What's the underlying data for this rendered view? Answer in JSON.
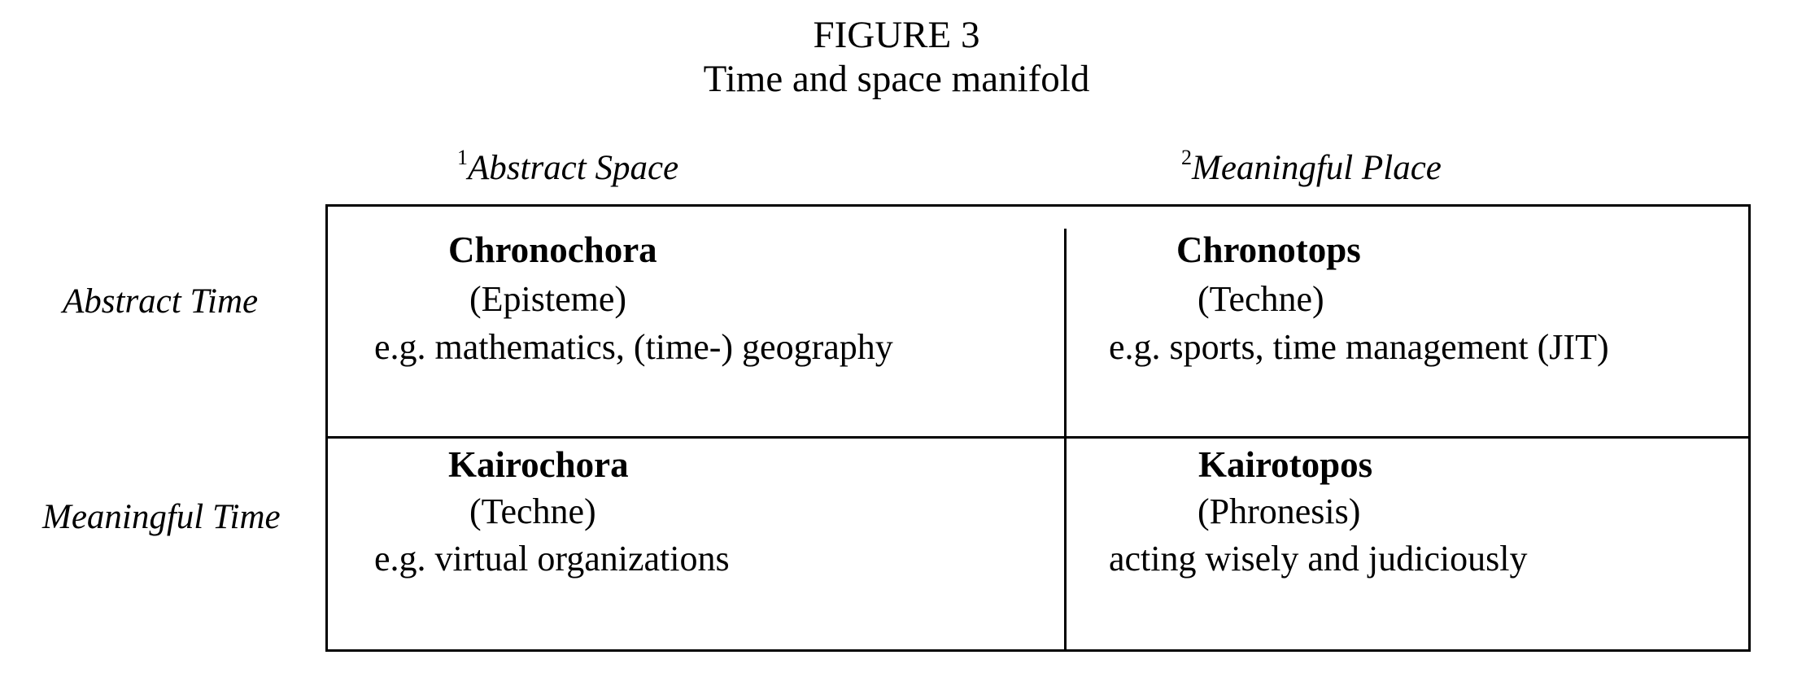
{
  "figure": {
    "label": "FIGURE 3",
    "title": "Time and space manifold"
  },
  "columns": [
    {
      "number": "1",
      "label": "Abstract Space"
    },
    {
      "number": "2",
      "label": "Meaningful Place"
    }
  ],
  "rows": [
    {
      "label": "Abstract Time"
    },
    {
      "label": "Meaningful Time"
    }
  ],
  "cells": [
    {
      "name": "Chronochora",
      "category": "(Episteme)",
      "example": "e.g. mathematics, (time-) geography"
    },
    {
      "name": "Chronotops",
      "category": "(Techne)",
      "example": "e.g. sports, time management (JIT)"
    },
    {
      "name": "Kairochora",
      "category": "(Techne)",
      "example": "e.g. virtual organizations"
    },
    {
      "name": "Kairotopos",
      "category": "(Phronesis)",
      "example": "acting wisely and judiciously"
    }
  ]
}
